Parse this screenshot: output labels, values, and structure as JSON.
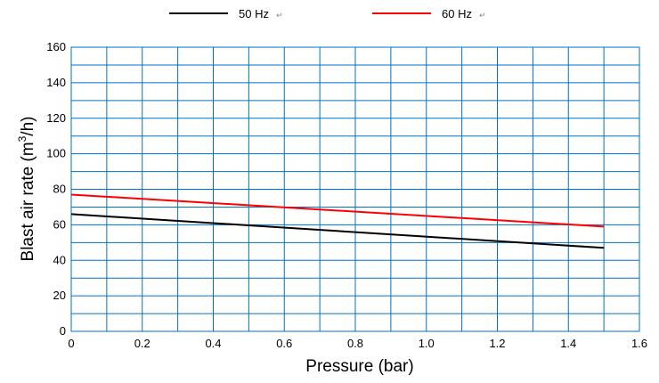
{
  "chart_data": {
    "type": "line",
    "xlabel": "Pressure (bar)",
    "ylabel": {
      "before": "Blast air rate (m",
      "sup": "3",
      "after": "/h)"
    },
    "xlim": [
      0,
      1.6
    ],
    "ylim": [
      0,
      160
    ],
    "grid": true,
    "legend_position": "top",
    "x_ticks": [
      "0",
      "0.2",
      "0.4",
      "0.6",
      "0.8",
      "1.0",
      "1.2",
      "1.4",
      "1.6"
    ],
    "y_ticks": [
      "0",
      "20",
      "40",
      "60",
      "80",
      "100",
      "120",
      "140",
      "160"
    ],
    "series": [
      {
        "name": "50 Hz",
        "color": "#000000",
        "x": [
          0,
          1.5
        ],
        "y": [
          66,
          47
        ]
      },
      {
        "name": "60 Hz",
        "color": "#ff0000",
        "x": [
          0,
          1.5
        ],
        "y": [
          77,
          59
        ]
      }
    ],
    "grid_color": "#0070c0",
    "return_mark": "↵"
  }
}
